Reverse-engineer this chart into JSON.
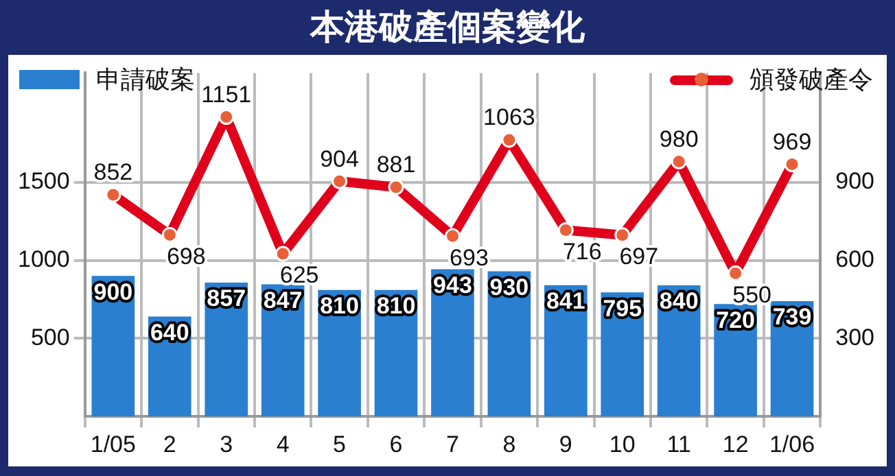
{
  "chart_data": {
    "type": "bar",
    "title": "本港破產個案變化",
    "categories": [
      "1/05",
      "2",
      "3",
      "4",
      "5",
      "6",
      "7",
      "8",
      "9",
      "10",
      "11",
      "12",
      "1/06"
    ],
    "series": [
      {
        "name": "申請破案",
        "color": "#2a7fd0",
        "values": [
          900,
          640,
          857,
          847,
          810,
          810,
          943,
          930,
          841,
          795,
          840,
          720,
          739
        ]
      },
      {
        "name": "頒發破產令",
        "type": "line",
        "axis": "y2",
        "color": "#e0001b",
        "values": [
          852,
          698,
          1151,
          625,
          904,
          881,
          693,
          1063,
          716,
          697,
          980,
          550,
          969
        ]
      }
    ],
    "ylim": [
      0,
      2200
    ],
    "yticks": [
      500,
      1000,
      1500
    ],
    "y2lim": [
      0,
      1320
    ],
    "y2ticks": [
      300,
      600,
      900
    ],
    "grid": true,
    "legend": "top",
    "marker": "circle",
    "line_style": "solid",
    "data_labels": true
  }
}
